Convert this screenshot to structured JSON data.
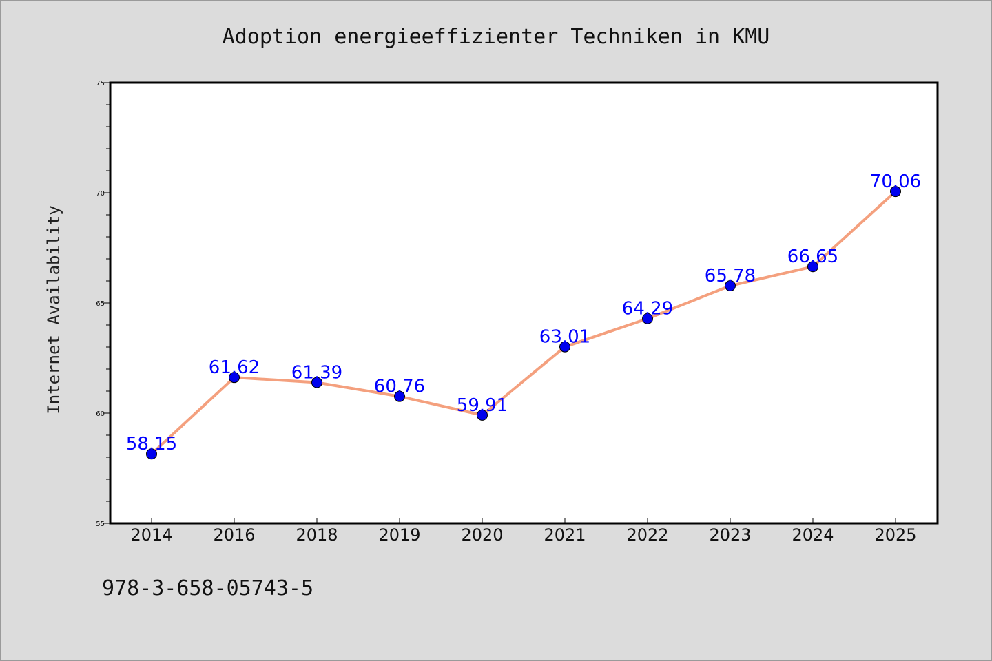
{
  "chart_data": {
    "type": "line",
    "title": "Adoption energieeffizienter Techniken in KMU",
    "xlabel": "",
    "ylabel": "Internet Availability",
    "categories": [
      "2014",
      "2016",
      "2018",
      "2019",
      "2020",
      "2021",
      "2022",
      "2023",
      "2024",
      "2025"
    ],
    "series": [
      {
        "values": [
          58.15,
          61.62,
          61.39,
          60.76,
          59.91,
          63.01,
          64.29,
          65.78,
          66.65,
          70.06
        ],
        "labels": [
          "58.15",
          "61.62",
          "61.39",
          "60.76",
          "59.91",
          "63.01",
          "64.29",
          "65.78",
          "66.65",
          "70.06"
        ],
        "line_color": "#f4a07e",
        "marker_color": "#0000ee"
      }
    ],
    "ylim": [
      55,
      75
    ],
    "yticks": [
      "55",
      "60",
      "65",
      "70",
      "75"
    ],
    "grid": false,
    "legend": "none"
  },
  "footer": {
    "code": "978-3-658-05743-5"
  },
  "colors": {
    "background": "#dcdcdc",
    "plot_background": "#ffffff",
    "label_color": "#0000ff"
  }
}
